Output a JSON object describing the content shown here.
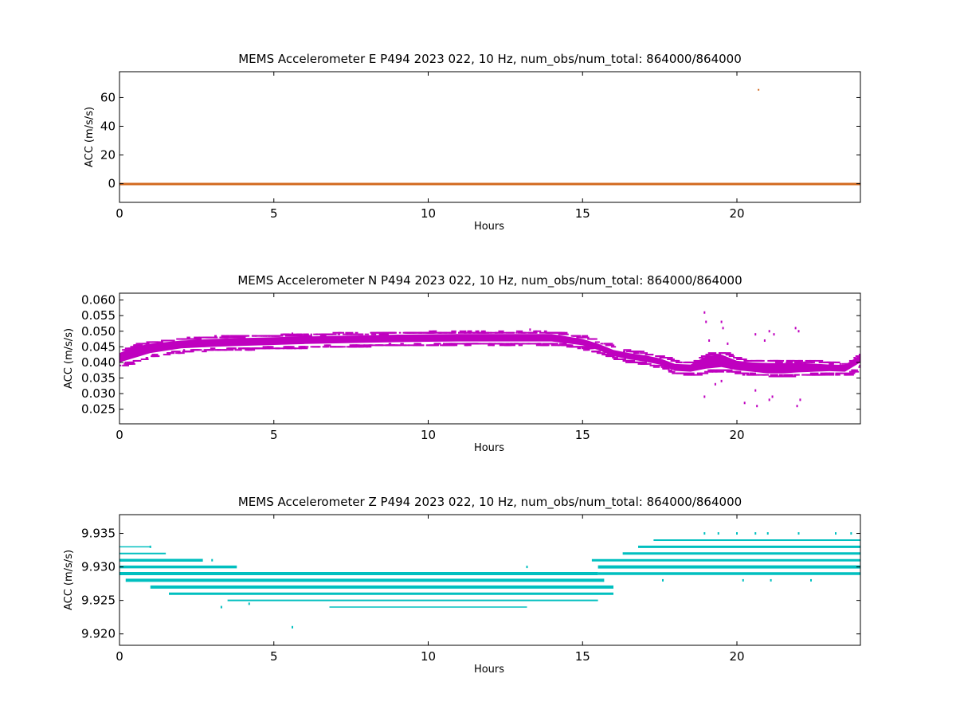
{
  "colors": {
    "east": "#d2691e",
    "north": "#bf00bf",
    "vertical": "#00bfbf",
    "axes": "#000000",
    "background": "#ffffff"
  },
  "chart_data": [
    {
      "type": "scatter",
      "title": "MEMS Accelerometer E P494 2023 022, 10 Hz, num_obs/num_total: 864000/864000",
      "xlabel": "Hours",
      "ylabel": "ACC (m/s/s)",
      "xlim": [
        0,
        24
      ],
      "ylim": [
        -13,
        78
      ],
      "xticks": [
        0,
        5,
        10,
        15,
        20
      ],
      "xtick_labels": [
        "0",
        "5",
        "10",
        "15",
        "20"
      ],
      "yticks": [
        0,
        20,
        40,
        60
      ],
      "ytick_labels": [
        "0",
        "20",
        "40",
        "60"
      ],
      "grid": false,
      "series": [
        {
          "color": "east",
          "band": {
            "x": [
              0,
              24
            ],
            "y": [
              -0.6,
              0.6
            ]
          },
          "points": [
            {
              "x": 20.7,
              "y": 65.4
            }
          ]
        }
      ]
    },
    {
      "type": "scatter",
      "title": "MEMS Accelerometer N P494 2023 022, 10 Hz, num_obs/num_total: 864000/864000",
      "xlabel": "Hours",
      "ylabel": "ACC (m/s/s)",
      "xlim": [
        0,
        24
      ],
      "ylim": [
        0.0203,
        0.0622
      ],
      "xticks": [
        0,
        5,
        10,
        15,
        20
      ],
      "xtick_labels": [
        "0",
        "5",
        "10",
        "15",
        "20"
      ],
      "yticks": [
        0.025,
        0.03,
        0.035,
        0.04,
        0.045,
        0.05,
        0.055,
        0.06
      ],
      "ytick_labels": [
        "0.025",
        "0.030",
        "0.035",
        "0.040",
        "0.045",
        "0.050",
        "0.055",
        "0.060"
      ],
      "grid": false,
      "series": [
        {
          "color": "north",
          "envelope": {
            "x": [
              0,
              0.5,
              1,
              2,
              3,
              4,
              5,
              6,
              7,
              8,
              9,
              10,
              11,
              12,
              13,
              14,
              15,
              15.5,
              16,
              16.5,
              17,
              17.5,
              18,
              18.5,
              19,
              19.5,
              20,
              20.5,
              21,
              21.5,
              22,
              22.5,
              23,
              23.5,
              24
            ],
            "lo": [
              0.04,
              0.0415,
              0.043,
              0.0445,
              0.045,
              0.0453,
              0.0456,
              0.0459,
              0.0461,
              0.0463,
              0.0465,
              0.0466,
              0.0467,
              0.0467,
              0.0467,
              0.0467,
              0.0455,
              0.044,
              0.042,
              0.041,
              0.0403,
              0.0393,
              0.0373,
              0.037,
              0.038,
              0.0385,
              0.0375,
              0.037,
              0.0365,
              0.0365,
              0.0368,
              0.037,
              0.0372,
              0.037,
              0.04
            ],
            "hi": [
              0.043,
              0.045,
              0.046,
              0.047,
              0.0475,
              0.0478,
              0.0481,
              0.0483,
              0.0485,
              0.0487,
              0.0489,
              0.049,
              0.0491,
              0.0491,
              0.0491,
              0.0491,
              0.0475,
              0.046,
              0.044,
              0.043,
              0.0423,
              0.0413,
              0.0395,
              0.0393,
              0.042,
              0.0425,
              0.0405,
              0.04,
              0.0398,
              0.0398,
              0.0398,
              0.0396,
              0.0393,
              0.0392,
              0.0425
            ]
          },
          "outliers": [
            {
              "x": 18.95,
              "y": 0.056
            },
            {
              "x": 19.0,
              "y": 0.053
            },
            {
              "x": 18.95,
              "y": 0.029
            },
            {
              "x": 19.3,
              "y": 0.033
            },
            {
              "x": 19.5,
              "y": 0.053
            },
            {
              "x": 19.5,
              "y": 0.034
            },
            {
              "x": 19.55,
              "y": 0.051
            },
            {
              "x": 20.25,
              "y": 0.027
            },
            {
              "x": 20.6,
              "y": 0.049
            },
            {
              "x": 20.65,
              "y": 0.026
            },
            {
              "x": 20.6,
              "y": 0.031
            },
            {
              "x": 20.9,
              "y": 0.047
            },
            {
              "x": 21.05,
              "y": 0.05
            },
            {
              "x": 21.05,
              "y": 0.028
            },
            {
              "x": 21.2,
              "y": 0.049
            },
            {
              "x": 21.15,
              "y": 0.029
            },
            {
              "x": 21.9,
              "y": 0.051
            },
            {
              "x": 21.95,
              "y": 0.026
            },
            {
              "x": 22.0,
              "y": 0.05
            },
            {
              "x": 22.05,
              "y": 0.028
            },
            {
              "x": 13.3,
              "y": 0.0505
            },
            {
              "x": 5.6,
              "y": 0.0492
            },
            {
              "x": 19.1,
              "y": 0.047
            },
            {
              "x": 19.7,
              "y": 0.046
            }
          ]
        }
      ]
    },
    {
      "type": "scatter",
      "title": "MEMS Accelerometer Z P494 2023 022, 10 Hz, num_obs/num_total: 864000/864000",
      "xlabel": "Hours",
      "ylabel": "ACC (m/s/s)",
      "xlim": [
        0,
        24
      ],
      "ylim": [
        9.9183,
        9.9378
      ],
      "xticks": [
        0,
        5,
        10,
        15,
        20
      ],
      "xtick_labels": [
        "0",
        "5",
        "10",
        "15",
        "20"
      ],
      "yticks": [
        9.92,
        9.925,
        9.93,
        9.935
      ],
      "ytick_labels": [
        "9.920",
        "9.925",
        "9.930",
        "9.935"
      ],
      "grid": false,
      "series": [
        {
          "color": "vertical",
          "levels": [
            {
              "y": 9.933,
              "x0": 0,
              "x1": 1.0,
              "w": 1.5
            },
            {
              "y": 9.932,
              "x0": 0,
              "x1": 1.5,
              "w": 2
            },
            {
              "y": 9.931,
              "x0": 0,
              "x1": 2.7,
              "w": 3.5
            },
            {
              "y": 9.93,
              "x0": 0,
              "x1": 3.8,
              "w": 3.5
            },
            {
              "y": 9.929,
              "x0": 0,
              "x1": 15.5,
              "w": 4
            },
            {
              "y": 9.928,
              "x0": 0.2,
              "x1": 15.7,
              "w": 4
            },
            {
              "y": 9.927,
              "x0": 1.0,
              "x1": 16.0,
              "w": 4
            },
            {
              "y": 9.926,
              "x0": 1.6,
              "x1": 16.0,
              "w": 3
            },
            {
              "y": 9.925,
              "x0": 3.5,
              "x1": 15.5,
              "w": 2
            },
            {
              "y": 9.924,
              "x0": 6.8,
              "x1": 13.2,
              "w": 1.5
            },
            {
              "y": 9.931,
              "x0": 15.3,
              "x1": 24,
              "w": 3
            },
            {
              "y": 9.93,
              "x0": 15.5,
              "x1": 24,
              "w": 4
            },
            {
              "y": 9.929,
              "x0": 15.5,
              "x1": 24,
              "w": 3.5
            },
            {
              "y": 9.932,
              "x0": 16.3,
              "x1": 24,
              "w": 3
            },
            {
              "y": 9.933,
              "x0": 16.8,
              "x1": 24,
              "w": 3
            },
            {
              "y": 9.934,
              "x0": 17.3,
              "x1": 24,
              "w": 2
            }
          ],
          "outliers": [
            {
              "x": 5.6,
              "y": 9.921
            },
            {
              "x": 3.3,
              "y": 9.924
            },
            {
              "x": 4.2,
              "y": 9.9245
            },
            {
              "x": 18.95,
              "y": 9.935
            },
            {
              "x": 19.4,
              "y": 9.935
            },
            {
              "x": 20.0,
              "y": 9.935
            },
            {
              "x": 20.6,
              "y": 9.935
            },
            {
              "x": 21.0,
              "y": 9.935
            },
            {
              "x": 22.0,
              "y": 9.935
            },
            {
              "x": 23.2,
              "y": 9.935
            },
            {
              "x": 23.7,
              "y": 9.935
            },
            {
              "x": 17.6,
              "y": 9.928
            },
            {
              "x": 20.2,
              "y": 9.928
            },
            {
              "x": 21.1,
              "y": 9.928
            },
            {
              "x": 22.4,
              "y": 9.928
            },
            {
              "x": 1.0,
              "y": 9.933
            },
            {
              "x": 3.0,
              "y": 9.931
            },
            {
              "x": 13.2,
              "y": 9.93
            }
          ]
        }
      ]
    }
  ]
}
